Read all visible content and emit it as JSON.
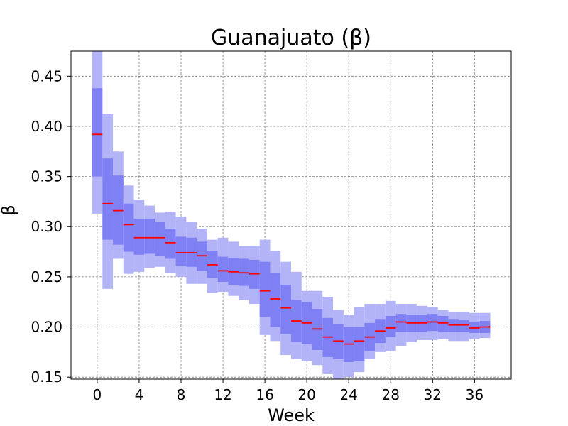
{
  "chart_data": {
    "type": "box",
    "title": "Guanajuato (β)",
    "xlabel": "Week",
    "ylabel": "β",
    "xlim": [
      -2.5,
      39.5
    ],
    "ylim": [
      0.148,
      0.475
    ],
    "xticks": [
      "0",
      "4",
      "8",
      "12",
      "16",
      "20",
      "24",
      "28",
      "32",
      "36"
    ],
    "xtick_values": [
      0,
      4,
      8,
      12,
      16,
      20,
      24,
      28,
      32,
      36
    ],
    "yticks": [
      "0.15",
      "0.20",
      "0.25",
      "0.30",
      "0.35",
      "0.40",
      "0.45"
    ],
    "ytick_values": [
      0.15,
      0.2,
      0.25,
      0.3,
      0.35,
      0.4,
      0.45
    ],
    "grid": true,
    "colors": {
      "outer_band": "#b3b3f7",
      "inner_band": "#8080f5",
      "median": "#ff0000",
      "grid": "#808080"
    },
    "weeks": [
      0,
      1,
      2,
      3,
      4,
      5,
      6,
      7,
      8,
      9,
      10,
      11,
      12,
      13,
      14,
      15,
      16,
      17,
      18,
      19,
      20,
      21,
      22,
      23,
      24,
      25,
      26,
      27,
      28,
      29,
      30,
      31,
      32,
      33,
      34,
      35,
      36,
      37
    ],
    "median": [
      0.392,
      0.323,
      0.316,
      0.302,
      0.289,
      0.289,
      0.289,
      0.284,
      0.274,
      0.274,
      0.271,
      0.262,
      0.256,
      0.255,
      0.254,
      0.253,
      0.236,
      0.228,
      0.219,
      0.206,
      0.204,
      0.198,
      0.19,
      0.186,
      0.183,
      0.186,
      0.19,
      0.196,
      0.199,
      0.205,
      0.204,
      0.204,
      0.205,
      0.204,
      0.202,
      0.202,
      0.199,
      0.2
    ],
    "inner_low": [
      0.35,
      0.287,
      0.282,
      0.275,
      0.272,
      0.273,
      0.271,
      0.268,
      0.261,
      0.26,
      0.256,
      0.249,
      0.245,
      0.242,
      0.241,
      0.238,
      0.21,
      0.2,
      0.193,
      0.185,
      0.183,
      0.177,
      0.17,
      0.168,
      0.165,
      0.166,
      0.176,
      0.184,
      0.19,
      0.195,
      0.195,
      0.195,
      0.196,
      0.195,
      0.195,
      0.195,
      0.194,
      0.194
    ],
    "inner_high": [
      0.438,
      0.368,
      0.351,
      0.323,
      0.308,
      0.308,
      0.305,
      0.298,
      0.29,
      0.289,
      0.285,
      0.276,
      0.27,
      0.269,
      0.268,
      0.267,
      0.265,
      0.254,
      0.242,
      0.227,
      0.225,
      0.218,
      0.209,
      0.203,
      0.2,
      0.2,
      0.204,
      0.208,
      0.211,
      0.213,
      0.212,
      0.212,
      0.213,
      0.211,
      0.208,
      0.207,
      0.205,
      0.206
    ],
    "outer_low": [
      0.313,
      0.238,
      0.268,
      0.253,
      0.255,
      0.259,
      0.26,
      0.254,
      0.25,
      0.243,
      0.243,
      0.234,
      0.235,
      0.231,
      0.227,
      0.223,
      0.192,
      0.186,
      0.172,
      0.168,
      0.166,
      0.162,
      0.153,
      0.148,
      0.15,
      0.155,
      0.168,
      0.175,
      0.176,
      0.181,
      0.185,
      0.187,
      0.187,
      0.188,
      0.186,
      0.186,
      0.188,
      0.189
    ],
    "outer_high": [
      0.475,
      0.412,
      0.375,
      0.341,
      0.327,
      0.321,
      0.314,
      0.315,
      0.31,
      0.305,
      0.298,
      0.287,
      0.289,
      0.285,
      0.281,
      0.281,
      0.287,
      0.276,
      0.265,
      0.255,
      0.236,
      0.236,
      0.23,
      0.217,
      0.212,
      0.22,
      0.223,
      0.223,
      0.226,
      0.223,
      0.223,
      0.221,
      0.22,
      0.217,
      0.215,
      0.215,
      0.214,
      0.214
    ]
  }
}
